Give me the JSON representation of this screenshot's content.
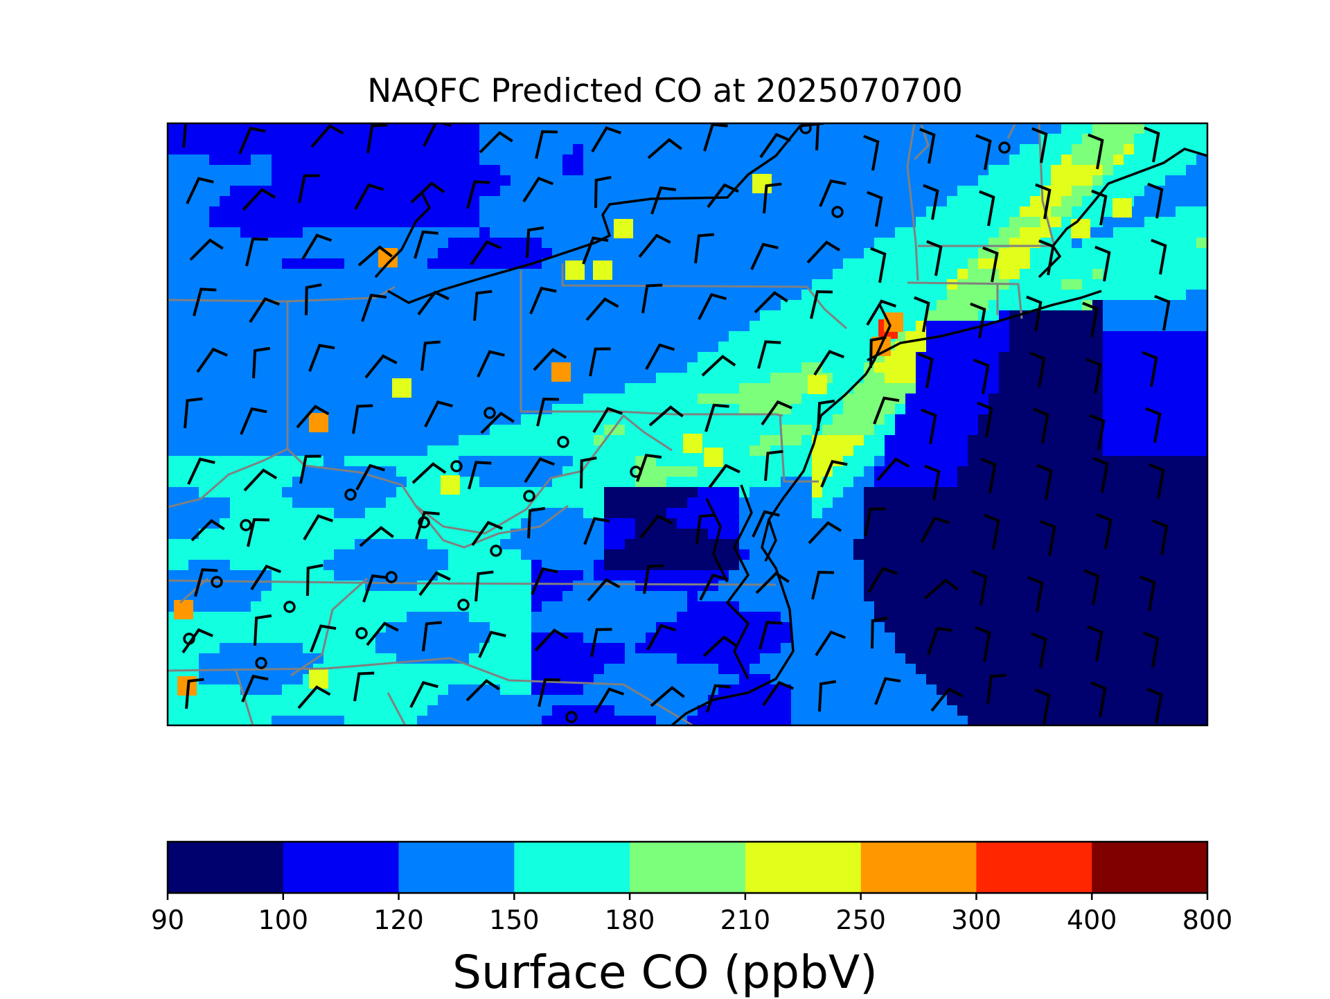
{
  "chart_data": {
    "type": "heatmap",
    "title": "NAQFC Predicted CO at 2025070700",
    "colorbar": {
      "label": "Surface CO (ppbV)",
      "boundaries": [
        90,
        100,
        120,
        150,
        180,
        210,
        250,
        300,
        400,
        800
      ],
      "tick_labels": [
        "90",
        "100",
        "120",
        "150",
        "180",
        "210",
        "250",
        "300",
        "400",
        "800"
      ],
      "colors": [
        "#00006e",
        "#0000f5",
        "#0080ff",
        "#12ffe0",
        "#7cff7a",
        "#e1ff1a",
        "#ff9800",
        "#ff2600",
        "#800000"
      ]
    },
    "map_features": [
      "state boundaries",
      "coastlines",
      "wind barbs",
      "calm-wind circles"
    ]
  }
}
